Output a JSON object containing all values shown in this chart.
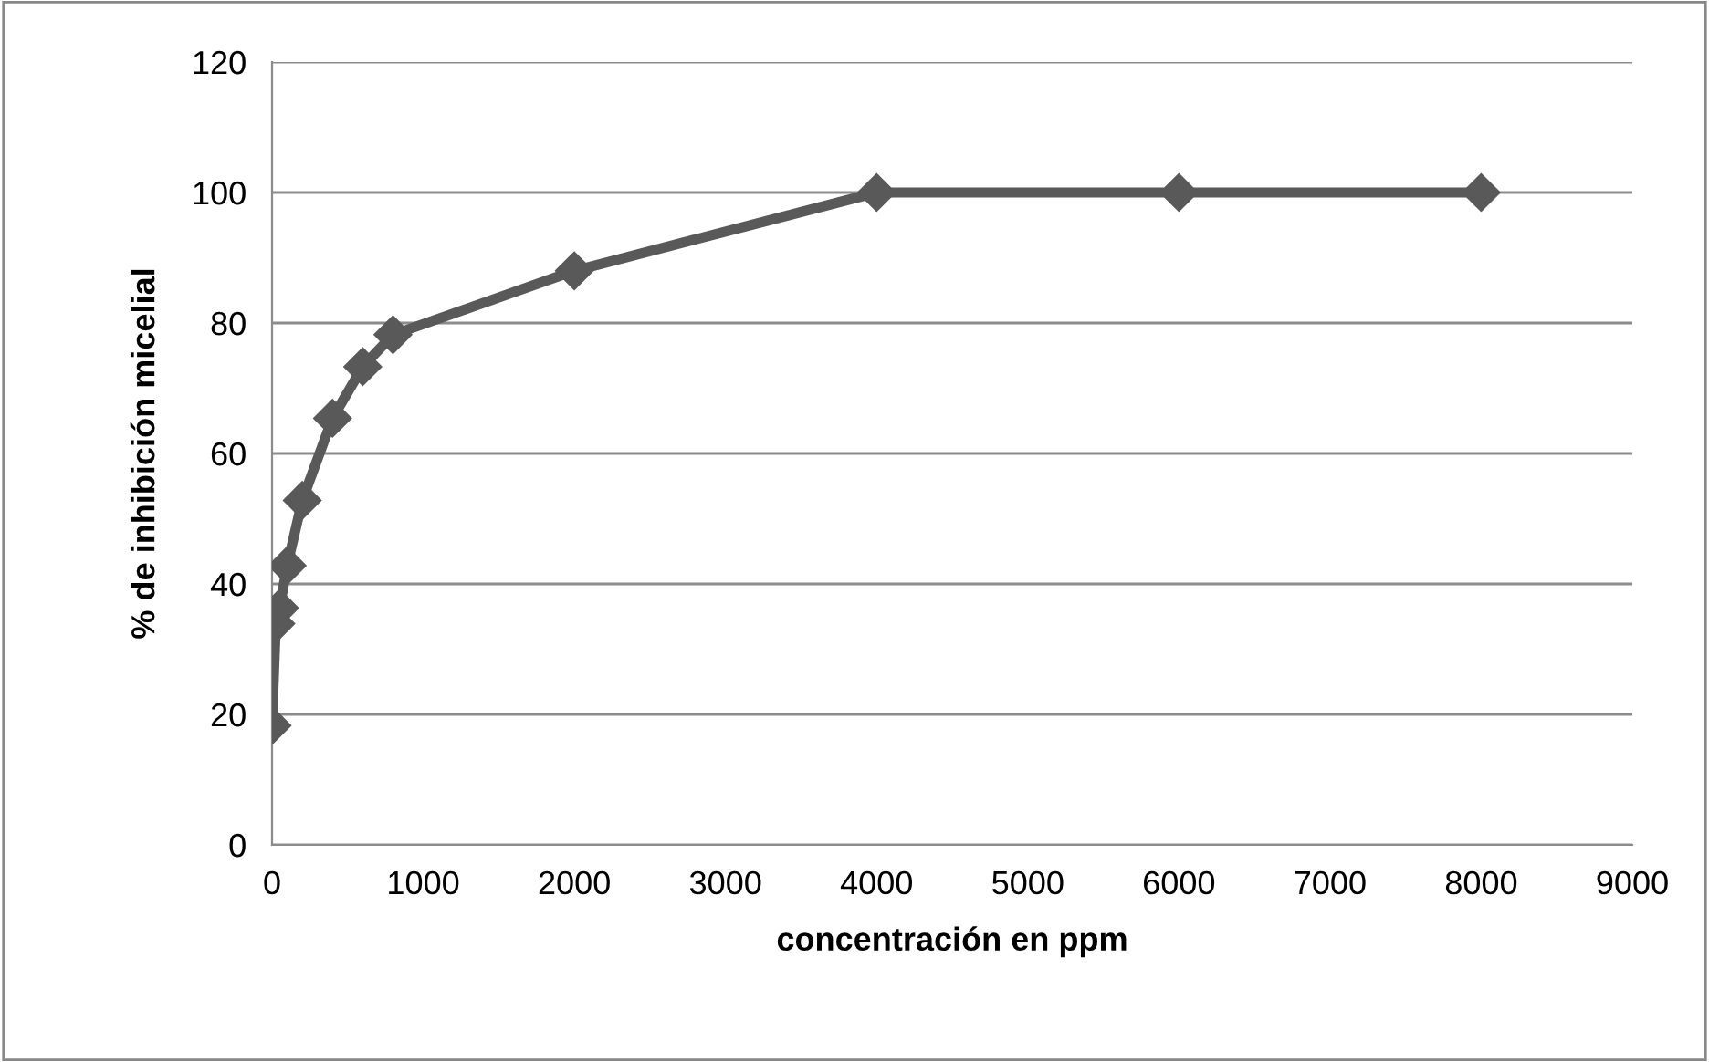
{
  "chart_data": {
    "type": "line",
    "xlabel": "concentración en ppm",
    "ylabel": "% de inhibición micelial",
    "x": [
      0,
      25,
      50,
      100,
      200,
      400,
      600,
      800,
      2000,
      4000,
      6000,
      8000
    ],
    "series": [
      {
        "color": "#595959",
        "values": [
          18.3,
          33.9,
          36.3,
          42.8,
          52.8,
          65.4,
          73.3,
          78.2,
          88,
          100,
          100,
          100
        ]
      }
    ],
    "xlim": [
      0,
      9000
    ],
    "xticks": [
      0,
      1000,
      2000,
      3000,
      4000,
      5000,
      6000,
      7000,
      8000,
      9000
    ],
    "ylim": [
      0,
      120
    ],
    "yticks": [
      0,
      20,
      40,
      60,
      80,
      100,
      120
    ],
    "grid": "y",
    "marker": "diamond",
    "line_style": "solid"
  }
}
